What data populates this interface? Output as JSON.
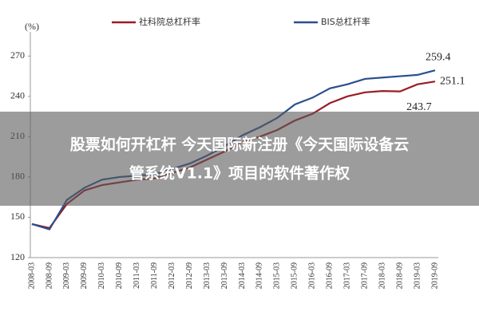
{
  "chart_data": {
    "type": "line",
    "y_unit_label": "(%)",
    "categories": [
      "2008-03",
      "2008-09",
      "2009-03",
      "2009-09",
      "2010-03",
      "2010-09",
      "2011-03",
      "2011-09",
      "2012-03",
      "2012-09",
      "2013-03",
      "2013-09",
      "2014-03",
      "2014-09",
      "2015-03",
      "2015-09",
      "2016-03",
      "2016-09",
      "2017-03",
      "2017-09",
      "2018-03",
      "2018-09",
      "2019-03",
      "2019-09"
    ],
    "series": [
      {
        "name": "社科院总杠杆率",
        "color": "#9b1c24",
        "values": [
          145,
          142,
          160,
          170,
          174,
          176,
          178,
          179,
          183,
          187,
          193,
          199,
          206,
          210,
          215,
          222,
          227,
          235,
          240,
          243,
          244,
          243.7,
          249,
          251.1
        ],
        "value_labels": [
          null,
          null,
          null,
          null,
          null,
          null,
          null,
          null,
          null,
          null,
          null,
          null,
          null,
          null,
          null,
          null,
          null,
          null,
          null,
          null,
          null,
          "243.7",
          null,
          "251.1"
        ]
      },
      {
        "name": "BIS总杠杆率",
        "color": "#2b4f8f",
        "values": [
          145,
          141,
          163,
          172,
          178,
          180,
          181,
          182,
          186,
          190,
          196,
          203,
          211,
          217,
          224,
          234,
          239,
          246,
          249,
          253,
          254,
          255,
          256,
          259.4
        ],
        "value_labels": [
          null,
          null,
          null,
          null,
          null,
          null,
          null,
          null,
          null,
          null,
          null,
          null,
          null,
          null,
          null,
          null,
          null,
          null,
          null,
          null,
          null,
          null,
          null,
          "259.4"
        ]
      }
    ],
    "ylim": [
      120,
      288
    ],
    "yticks": [
      120,
      150,
      180,
      210,
      240,
      270
    ],
    "grid": false,
    "legend": "top"
  },
  "banner": {
    "lines": [
      "股票如何开杠杆 今天国际新注册《今天国际设备云",
      "管系统V1.1》项目的软件著作权"
    ]
  }
}
